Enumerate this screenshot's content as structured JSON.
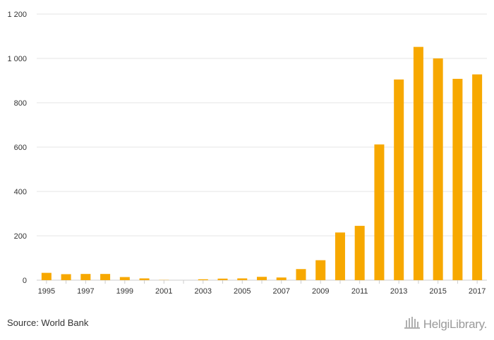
{
  "chart_data": {
    "type": "bar",
    "categories": [
      "1995",
      "1996",
      "1997",
      "1998",
      "1999",
      "2000",
      "2001",
      "2002",
      "2003",
      "2004",
      "2005",
      "2006",
      "2007",
      "2008",
      "2009",
      "2010",
      "2011",
      "2012",
      "2013",
      "2014",
      "2015",
      "2016",
      "2017"
    ],
    "values": [
      33,
      27,
      28,
      28,
      14,
      8,
      1,
      0,
      4,
      7,
      8,
      15,
      12,
      50,
      90,
      215,
      245,
      612,
      905,
      1052,
      1000,
      908,
      928
    ],
    "x_tick_labels": [
      "1995",
      "1997",
      "1999",
      "2001",
      "2003",
      "2005",
      "2007",
      "2009",
      "2011",
      "2013",
      "2015",
      "2017"
    ],
    "y_ticks": [
      0,
      200,
      400,
      600,
      800,
      1000,
      1200
    ],
    "y_tick_labels": [
      "0",
      "200",
      "400",
      "600",
      "800",
      "1 000",
      "1 200"
    ],
    "ylim": [
      0,
      1200
    ],
    "title": "",
    "xlabel": "",
    "ylabel": "",
    "grid": true,
    "bar_color": "#f7a800"
  },
  "footer": {
    "source": "Source: World Bank",
    "brand": "HelgiLibrary."
  },
  "colors": {
    "grid": "#e6e6e6",
    "axis": "#cccccc",
    "brand_logo": "#b0b0b0"
  }
}
